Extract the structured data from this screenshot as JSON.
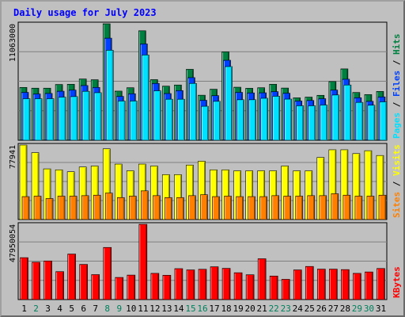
{
  "title": "Daily usage for July 2023",
  "colors": {
    "background": "#c0c0c0",
    "hits": "#008040",
    "files": "#0040ff",
    "pages": "#00e0ff",
    "visits": "#ffff00",
    "sites": "#ff8000",
    "kbytes": "#ff0000",
    "title": "#0000ff",
    "day_weekday": "#000000",
    "day_weekend": "#00805c"
  },
  "chart_data": [
    {
      "type": "bar",
      "panel": "top",
      "max_label": "11063000",
      "ylim": [
        0,
        11063000
      ],
      "legend": [
        "Pages",
        "Files",
        "Hits"
      ],
      "categories": [
        "1",
        "2",
        "3",
        "4",
        "5",
        "6",
        "7",
        "8",
        "9",
        "10",
        "11",
        "12",
        "13",
        "14",
        "15",
        "16",
        "17",
        "18",
        "19",
        "20",
        "21",
        "22",
        "23",
        "24",
        "25",
        "26",
        "27",
        "28",
        "29",
        "30",
        "31"
      ],
      "weekend": [
        false,
        true,
        false,
        false,
        false,
        false,
        false,
        true,
        true,
        false,
        false,
        false,
        false,
        false,
        true,
        true,
        false,
        false,
        false,
        false,
        false,
        true,
        true,
        false,
        false,
        false,
        false,
        false,
        true,
        true,
        false
      ],
      "series": [
        {
          "name": "Hits",
          "values": [
            5020000,
            4950000,
            4950000,
            5300000,
            5320000,
            5820000,
            5750000,
            11063000,
            4670000,
            4990000,
            10400000,
            5760000,
            5140000,
            5250000,
            6740000,
            4280000,
            4850000,
            8400000,
            5040000,
            4940000,
            4990000,
            5320000,
            4960000,
            4030000,
            4100000,
            4270000,
            5580000,
            6780000,
            4540000,
            4340000,
            4640000
          ]
        },
        {
          "name": "Files",
          "values": [
            4550000,
            4400000,
            4450000,
            4660000,
            4770000,
            5200000,
            5020000,
            9700000,
            4170000,
            4420000,
            9150000,
            5400000,
            4440000,
            4720000,
            5950000,
            3800000,
            4240000,
            7600000,
            4550000,
            4500000,
            4510000,
            4620000,
            4470000,
            3730000,
            3780000,
            3950000,
            4770000,
            5800000,
            4040000,
            3700000,
            4120000
          ]
        },
        {
          "name": "Pages",
          "values": [
            3950000,
            3950000,
            3950000,
            4100000,
            4150000,
            4650000,
            4520000,
            8550000,
            3730000,
            3730000,
            8100000,
            4700000,
            3900000,
            3900000,
            5400000,
            3230000,
            3700000,
            7000000,
            3850000,
            3850000,
            3990000,
            4180000,
            3910000,
            3280000,
            3280000,
            3350000,
            4300000,
            5250000,
            3600000,
            3330000,
            3650000
          ]
        }
      ]
    },
    {
      "type": "bar",
      "panel": "middle",
      "max_label": "77941",
      "ylim": [
        0,
        77941
      ],
      "legend": [
        "Sites",
        "Visits"
      ],
      "series": [
        {
          "name": "Visits",
          "values": [
            77941,
            70000,
            53000,
            52000,
            50000,
            55000,
            56000,
            74000,
            58000,
            51000,
            58000,
            56000,
            47000,
            47000,
            57000,
            61000,
            52000,
            52000,
            51000,
            51000,
            51000,
            51000,
            56000,
            51000,
            51000,
            65000,
            73000,
            73000,
            69000,
            72000,
            67000
          ]
        },
        {
          "name": "Sites",
          "values": [
            24000,
            24500,
            22000,
            24500,
            24500,
            25000,
            25500,
            27700,
            23000,
            24500,
            30000,
            25000,
            23000,
            23000,
            25000,
            26000,
            24000,
            24500,
            24000,
            24000,
            24000,
            25000,
            24500,
            24500,
            25000,
            25000,
            27000,
            25500,
            24500,
            24500,
            25500
          ]
        }
      ]
    },
    {
      "type": "bar",
      "panel": "bottom",
      "max_label": "47950054",
      "ylim": [
        0,
        47950054
      ],
      "legend": [
        "KBytes"
      ],
      "series": [
        {
          "name": "KBytes",
          "values": [
            26700000,
            23800000,
            24600000,
            17800000,
            29000000,
            22400000,
            15900000,
            33200000,
            14100000,
            15600000,
            47950054,
            16700000,
            15500000,
            19700000,
            18900000,
            19300000,
            20900000,
            19900000,
            17100000,
            15800000,
            26000000,
            15000000,
            12900000,
            18900000,
            21100000,
            19400000,
            19400000,
            19100000,
            16700000,
            17600000,
            19800000
          ]
        }
      ]
    }
  ]
}
